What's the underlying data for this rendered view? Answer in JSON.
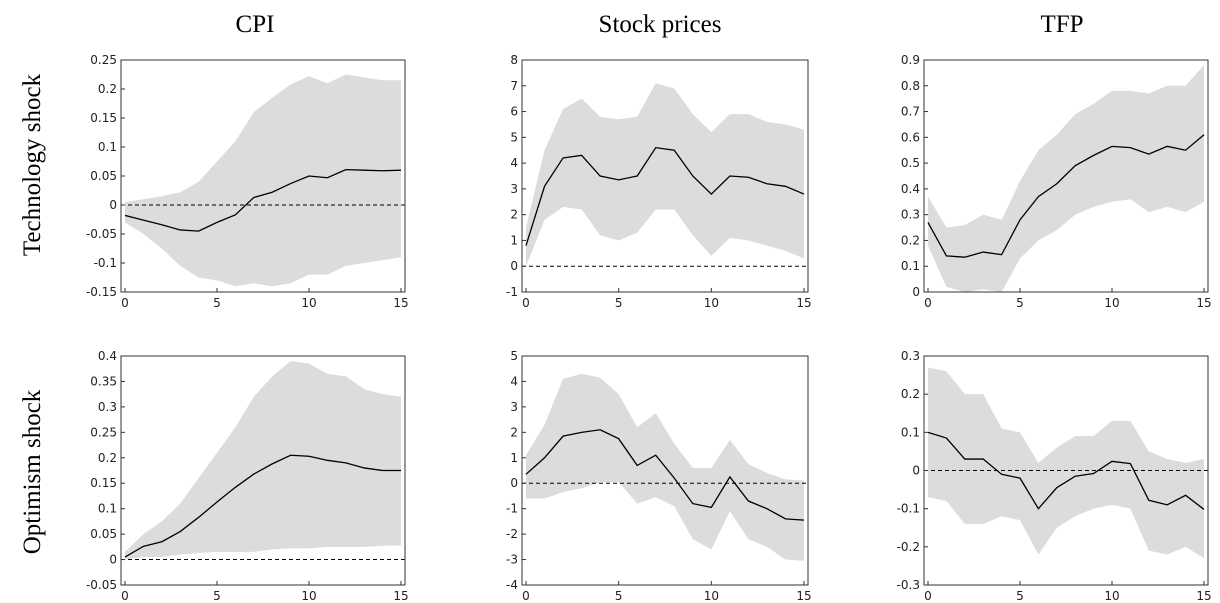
{
  "column_titles": [
    "CPI",
    "Stock prices",
    "TFP"
  ],
  "row_labels": [
    "Technology shock",
    "Optimism shock"
  ],
  "chart_data": [
    {
      "type": "line",
      "x": [
        0,
        1,
        2,
        3,
        4,
        5,
        6,
        7,
        8,
        9,
        10,
        11,
        12,
        13,
        14,
        15
      ],
      "values": [
        -0.018,
        -0.026,
        -0.034,
        -0.043,
        -0.045,
        -0.03,
        -0.017,
        0.013,
        0.022,
        0.037,
        0.05,
        0.047,
        0.061,
        0.06,
        0.059,
        0.06
      ],
      "band": {
        "upper": [
          0.005,
          0.01,
          0.015,
          0.022,
          0.04,
          0.075,
          0.11,
          0.16,
          0.185,
          0.208,
          0.222,
          0.21,
          0.225,
          0.22,
          0.215,
          0.215
        ],
        "lower": [
          -0.03,
          -0.05,
          -0.075,
          -0.105,
          -0.125,
          -0.13,
          -0.14,
          -0.135,
          -0.14,
          -0.135,
          -0.12,
          -0.12,
          -0.105,
          -0.1,
          -0.095,
          -0.09
        ]
      },
      "color": "#000000",
      "band_color": "#dcdcdc",
      "hline": 0,
      "xlim": [
        0,
        15
      ],
      "xticks": [
        0,
        5,
        10,
        15
      ],
      "ylim": [
        -0.15,
        0.25
      ],
      "yticks": [
        -0.15,
        -0.1,
        -0.05,
        0,
        0.05,
        0.1,
        0.15,
        0.2,
        0.25
      ]
    },
    {
      "type": "line",
      "x": [
        0,
        1,
        2,
        3,
        4,
        5,
        6,
        7,
        8,
        9,
        10,
        11,
        12,
        13,
        14,
        15
      ],
      "values": [
        0.8,
        3.1,
        4.2,
        4.3,
        3.5,
        3.35,
        3.5,
        4.6,
        4.5,
        3.5,
        2.8,
        3.5,
        3.45,
        3.2,
        3.1,
        2.8
      ],
      "band": {
        "upper": [
          1.5,
          4.5,
          6.1,
          6.5,
          5.8,
          5.7,
          5.8,
          7.1,
          6.9,
          5.9,
          5.2,
          5.9,
          5.9,
          5.6,
          5.5,
          5.3
        ],
        "lower": [
          0,
          1.8,
          2.3,
          2.2,
          1.2,
          1.0,
          1.3,
          2.2,
          2.2,
          1.2,
          0.4,
          1.1,
          1.0,
          0.8,
          0.6,
          0.3
        ]
      },
      "color": "#000000",
      "band_color": "#dcdcdc",
      "hline": 0,
      "xlim": [
        0,
        15
      ],
      "xticks": [
        0,
        5,
        10,
        15
      ],
      "ylim": [
        -1,
        8
      ],
      "yticks": [
        -1,
        0,
        1,
        2,
        3,
        4,
        5,
        6,
        7,
        8
      ]
    },
    {
      "type": "line",
      "x": [
        0,
        1,
        2,
        3,
        4,
        5,
        6,
        7,
        8,
        9,
        10,
        11,
        12,
        13,
        14,
        15
      ],
      "values": [
        0.27,
        0.14,
        0.135,
        0.155,
        0.145,
        0.28,
        0.37,
        0.42,
        0.49,
        0.53,
        0.565,
        0.56,
        0.535,
        0.565,
        0.55,
        0.61
      ],
      "band": {
        "upper": [
          0.37,
          0.25,
          0.26,
          0.3,
          0.28,
          0.43,
          0.55,
          0.61,
          0.69,
          0.73,
          0.78,
          0.78,
          0.77,
          0.8,
          0.8,
          0.88
        ],
        "lower": [
          0.18,
          0.02,
          0.0,
          0.01,
          0.0,
          0.13,
          0.2,
          0.24,
          0.3,
          0.33,
          0.35,
          0.36,
          0.31,
          0.33,
          0.31,
          0.35
        ]
      },
      "color": "#000000",
      "band_color": "#dcdcdc",
      "hline": 0,
      "xlim": [
        0,
        15
      ],
      "xticks": [
        0,
        5,
        10,
        15
      ],
      "ylim": [
        0,
        0.9
      ],
      "yticks": [
        0,
        0.1,
        0.2,
        0.3,
        0.4,
        0.5,
        0.6,
        0.7,
        0.8,
        0.9
      ]
    },
    {
      "type": "line",
      "x": [
        0,
        1,
        2,
        3,
        4,
        5,
        6,
        7,
        8,
        9,
        10,
        11,
        12,
        13,
        14,
        15
      ],
      "values": [
        0.005,
        0.026,
        0.035,
        0.055,
        0.083,
        0.113,
        0.142,
        0.168,
        0.188,
        0.205,
        0.203,
        0.195,
        0.19,
        0.18,
        0.175,
        0.175
      ],
      "band": {
        "upper": [
          0.015,
          0.05,
          0.075,
          0.11,
          0.16,
          0.21,
          0.26,
          0.32,
          0.36,
          0.39,
          0.385,
          0.365,
          0.36,
          0.335,
          0.325,
          0.32
        ],
        "lower": [
          0,
          0.005,
          0.005,
          0.01,
          0.013,
          0.015,
          0.015,
          0.015,
          0.02,
          0.022,
          0.022,
          0.025,
          0.025,
          0.025,
          0.027,
          0.028
        ]
      },
      "color": "#000000",
      "band_color": "#dcdcdc",
      "hline": 0,
      "xlim": [
        0,
        15
      ],
      "xticks": [
        0,
        5,
        10,
        15
      ],
      "ylim": [
        -0.05,
        0.4
      ],
      "yticks": [
        -0.05,
        0,
        0.05,
        0.1,
        0.15,
        0.2,
        0.25,
        0.3,
        0.35,
        0.4
      ]
    },
    {
      "type": "line",
      "x": [
        0,
        1,
        2,
        3,
        4,
        5,
        6,
        7,
        8,
        9,
        10,
        11,
        12,
        13,
        14,
        15
      ],
      "values": [
        0.35,
        1.0,
        1.85,
        2.0,
        2.1,
        1.75,
        0.7,
        1.1,
        0.2,
        -0.8,
        -0.95,
        0.25,
        -0.7,
        -1.0,
        -1.4,
        -1.45
      ],
      "band": {
        "upper": [
          1.1,
          2.3,
          4.1,
          4.3,
          4.15,
          3.5,
          2.2,
          2.75,
          1.55,
          0.6,
          0.6,
          1.7,
          0.75,
          0.4,
          0.15,
          0.1
        ],
        "lower": [
          -0.6,
          -0.6,
          -0.35,
          -0.2,
          0.05,
          0.05,
          -0.8,
          -0.55,
          -0.9,
          -2.2,
          -2.6,
          -1.1,
          -2.2,
          -2.5,
          -3.0,
          -3.05
        ]
      },
      "color": "#000000",
      "band_color": "#dcdcdc",
      "hline": 0,
      "xlim": [
        0,
        15
      ],
      "xticks": [
        0,
        5,
        10,
        15
      ],
      "ylim": [
        -4,
        5
      ],
      "yticks": [
        -4,
        -3,
        -2,
        -1,
        0,
        1,
        2,
        3,
        4,
        5
      ]
    },
    {
      "type": "line",
      "x": [
        0,
        1,
        2,
        3,
        4,
        5,
        6,
        7,
        8,
        9,
        10,
        11,
        12,
        13,
        14,
        15
      ],
      "values": [
        0.1,
        0.085,
        0.03,
        0.03,
        -0.01,
        -0.02,
        -0.1,
        -0.045,
        -0.015,
        -0.008,
        0.024,
        0.018,
        -0.078,
        -0.09,
        -0.065,
        -0.102
      ],
      "band": {
        "upper": [
          0.27,
          0.26,
          0.2,
          0.2,
          0.11,
          0.1,
          0.02,
          0.06,
          0.09,
          0.09,
          0.13,
          0.13,
          0.05,
          0.03,
          0.02,
          0.03
        ],
        "lower": [
          -0.07,
          -0.08,
          -0.14,
          -0.14,
          -0.12,
          -0.13,
          -0.22,
          -0.15,
          -0.12,
          -0.1,
          -0.09,
          -0.1,
          -0.21,
          -0.22,
          -0.2,
          -0.23
        ]
      },
      "color": "#000000",
      "band_color": "#dcdcdc",
      "hline": 0,
      "xlim": [
        0,
        15
      ],
      "xticks": [
        0,
        5,
        10,
        15
      ],
      "ylim": [
        -0.3,
        0.3
      ],
      "yticks": [
        -0.3,
        -0.2,
        -0.1,
        0,
        0.1,
        0.2,
        0.3
      ]
    }
  ]
}
